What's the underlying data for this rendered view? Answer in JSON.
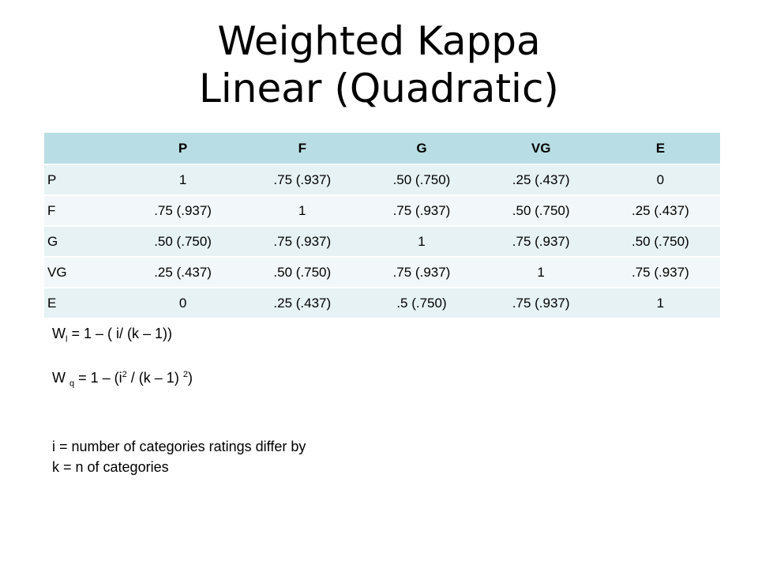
{
  "title": {
    "line1": "Weighted Kappa",
    "line2": "Linear (Quadratic)"
  },
  "table": {
    "columns": [
      "",
      "P",
      "F",
      "G",
      "VG",
      "E"
    ],
    "rows": [
      {
        "label": "P",
        "cells": [
          "1",
          ".75 (.937)",
          ".50 (.750)",
          ".25 (.437)",
          "0"
        ]
      },
      {
        "label": "F",
        "cells": [
          ".75 (.937)",
          "1",
          ".75 (.937)",
          ".50 (.750)",
          ".25 (.437)"
        ]
      },
      {
        "label": "G",
        "cells": [
          ".50 (.750)",
          ".75 (.937)",
          "1",
          ".75 (.937)",
          ".50 (.750)"
        ]
      },
      {
        "label": "VG",
        "cells": [
          ".25 (.437)",
          ".50 (.750)",
          ".75 (.937)",
          "1",
          ".75 (.937)"
        ]
      },
      {
        "label": "E",
        "cells": [
          "0",
          ".25 (.437)",
          ".5 (.750)",
          ".75 (.937)",
          "1"
        ]
      }
    ]
  },
  "formulas": {
    "linear": {
      "w": "W",
      "sub": "l",
      "body": " = 1 – ( i/ (k – 1))"
    },
    "quadratic": {
      "w": "W",
      "sub": "q",
      "part1": " = 1 – (i",
      "sup1": "2",
      "part2": " / (k – 1) ",
      "sup2": "2",
      "part3": ")"
    }
  },
  "notes": [
    "i = number of categories ratings differ by",
    "k = n of categories"
  ]
}
